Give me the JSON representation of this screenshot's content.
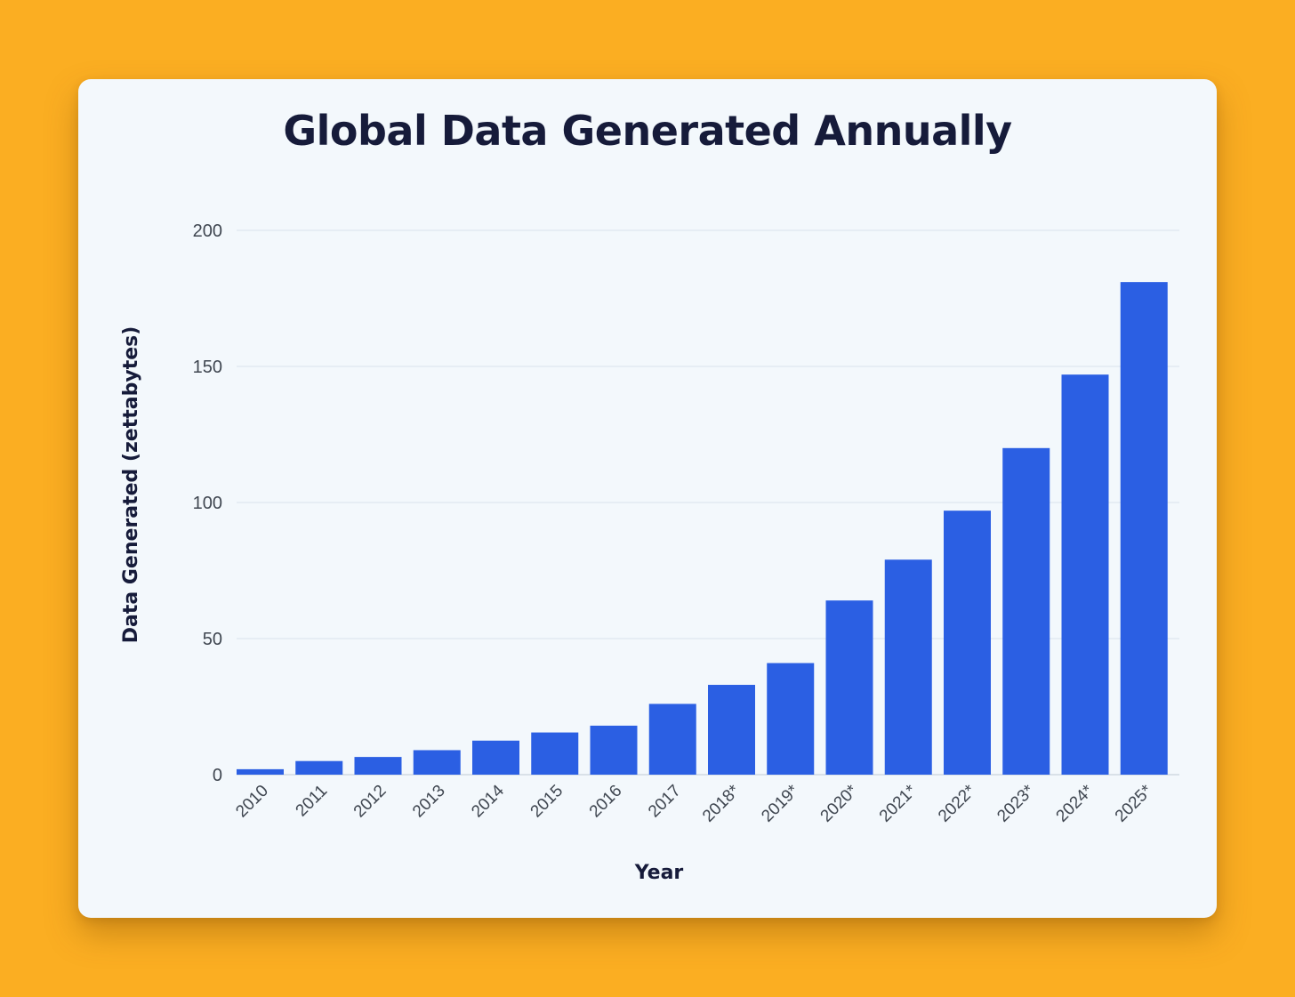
{
  "background_color": "#FBAE22",
  "card_color": "#F3F8FC",
  "bar_color": "#2B5FE3",
  "chart_data": {
    "type": "bar",
    "title": "Global Data Generated Annually",
    "xlabel": "Year",
    "ylabel": "Data Generated (zettabytes)",
    "categories": [
      "2010",
      "2011",
      "2012",
      "2013",
      "2014",
      "2015",
      "2016",
      "2017",
      "2018*",
      "2019*",
      "2020*",
      "2021*",
      "2022*",
      "2023*",
      "2024*",
      "2025*"
    ],
    "values": [
      2,
      5,
      6.5,
      9,
      12.5,
      15.5,
      18,
      26,
      33,
      41,
      64,
      79,
      97,
      120,
      147,
      181
    ],
    "ylim": [
      0,
      200
    ],
    "yticks": [
      0,
      50,
      100,
      150,
      200
    ],
    "grid": true
  }
}
